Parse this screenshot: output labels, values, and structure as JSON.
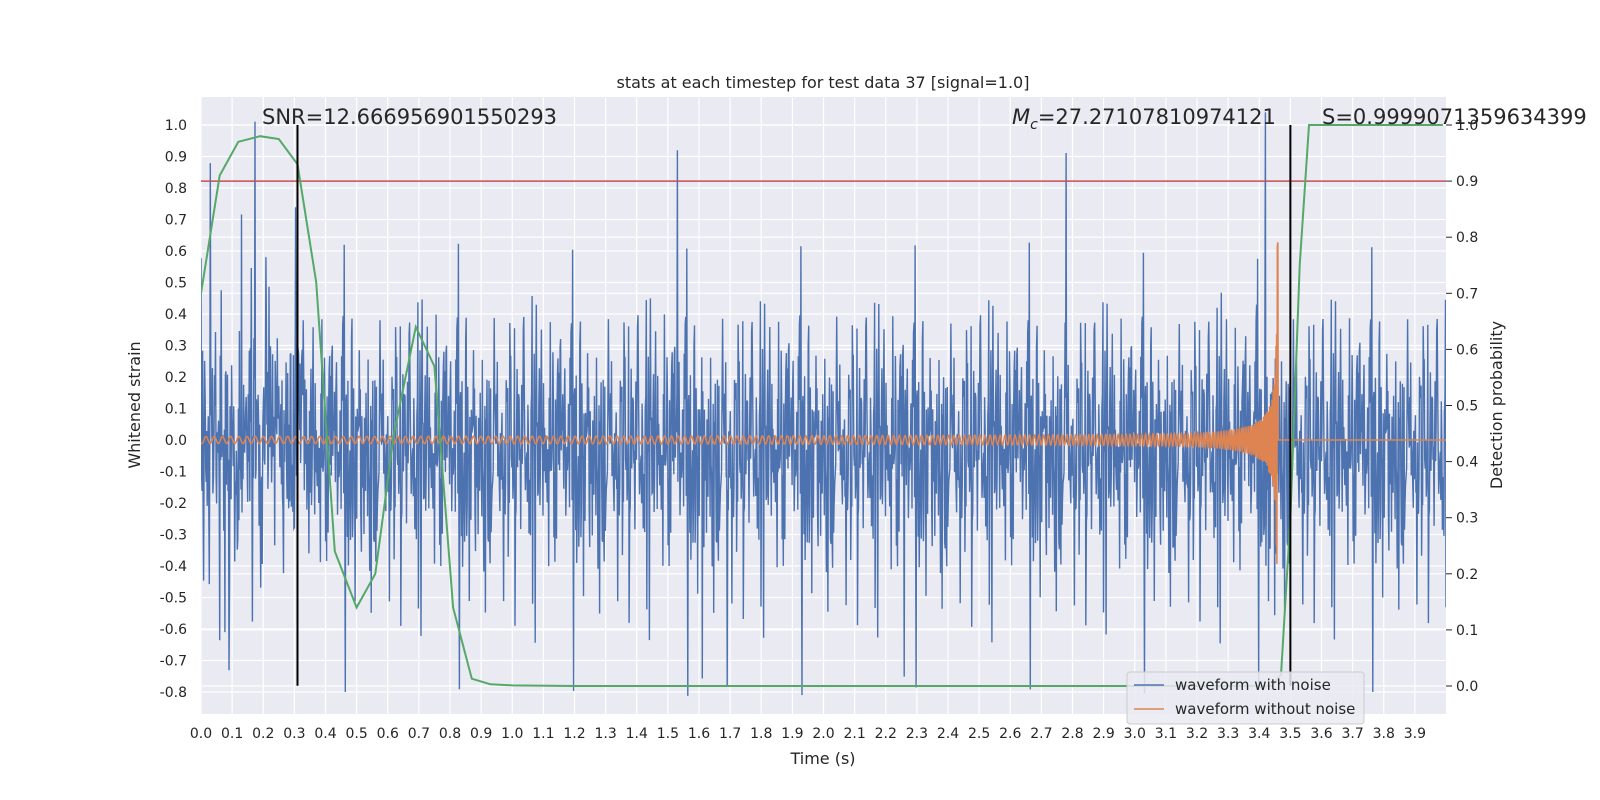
{
  "chart_data": {
    "type": "line",
    "title": "stats at each timestep for test data 37 [signal=1.0]",
    "xlabel": "Time (s)",
    "ylabel_left": "Whitened strain",
    "ylabel_right": "Detection probability",
    "xlim": [
      0.0,
      4.0
    ],
    "ylim_left": [
      -0.88,
      1.08
    ],
    "ylim_right": [
      -0.05,
      1.0
    ],
    "x_ticks": [
      "0.0",
      "0.1",
      "0.2",
      "0.3",
      "0.4",
      "0.5",
      "0.6",
      "0.7",
      "0.8",
      "0.9",
      "1.0",
      "1.1",
      "1.2",
      "1.3",
      "1.4",
      "1.5",
      "1.6",
      "1.7",
      "1.8",
      "1.9",
      "2.0",
      "2.1",
      "2.2",
      "2.3",
      "2.4",
      "2.5",
      "2.6",
      "2.7",
      "2.8",
      "2.9",
      "3.0",
      "3.1",
      "3.2",
      "3.3",
      "3.4",
      "3.5",
      "3.6",
      "3.7",
      "3.8",
      "3.9"
    ],
    "y_left_ticks": [
      "1.0",
      "0.9",
      "0.8",
      "0.7",
      "0.6",
      "0.5",
      "0.4",
      "0.3",
      "0.2",
      "0.1",
      "0.0",
      "-0.1",
      "-0.2",
      "-0.3",
      "-0.4",
      "-0.5",
      "-0.6",
      "-0.7",
      "-0.8"
    ],
    "y_right_ticks": [
      "1.0",
      "0.9",
      "0.8",
      "0.7",
      "0.6",
      "0.5",
      "0.4",
      "0.3",
      "0.2",
      "0.1",
      "0.0"
    ],
    "grid": true,
    "annotations": {
      "snr": "SNR=12.666956901550293",
      "mc_symbol": "M",
      "mc_sub": "c",
      "mc_value": "=27.27107810974121",
      "s_text": "S=0.9999071359634399"
    },
    "threshold": {
      "value": 0.9,
      "axis": "right",
      "color": "#c44e52"
    },
    "vlines": [
      0.31,
      3.5
    ],
    "series": [
      {
        "name": "waveform with noise",
        "color": "#4c72b0",
        "axis": "left",
        "kind": "noise",
        "amplitude": 0.27,
        "spikes": [
          [
            0.03,
            0.89
          ],
          [
            0.06,
            -0.63
          ],
          [
            0.13,
            0.72
          ],
          [
            1.53,
            0.91
          ],
          [
            1.61,
            -0.75
          ],
          [
            1.69,
            -0.77
          ],
          [
            2.26,
            -0.76
          ],
          [
            2.78,
            0.9
          ],
          [
            3.42,
            1.0
          ],
          [
            3.46,
            -0.73
          ]
        ]
      },
      {
        "name": "waveform without noise",
        "color": "#dd8452",
        "axis": "left",
        "kind": "chirp",
        "merger_time": 3.46,
        "peak_amplitude": 0.64
      },
      {
        "name": "detection probability",
        "color": "#55a868",
        "axis": "right",
        "kind": "line",
        "x": [
          0.0,
          0.06,
          0.12,
          0.19,
          0.25,
          0.31,
          0.37,
          0.43,
          0.5,
          0.56,
          0.62,
          0.69,
          0.75,
          0.81,
          0.87,
          0.93,
          1.0,
          1.2,
          1.5,
          2.0,
          2.5,
          3.0,
          3.3,
          3.4,
          3.44,
          3.47,
          3.5,
          3.53,
          3.56,
          3.6,
          3.9,
          3.99
        ],
        "y": [
          0.7,
          0.91,
          0.97,
          0.98,
          0.975,
          0.93,
          0.72,
          0.24,
          0.14,
          0.2,
          0.45,
          0.64,
          0.57,
          0.14,
          0.013,
          0.003,
          0.001,
          0.0,
          0.0,
          0.0,
          0.0,
          0.0,
          0.0,
          0.0,
          0.0,
          0.02,
          0.3,
          0.75,
          1.0,
          1.0,
          1.0,
          1.0
        ]
      }
    ],
    "legend": {
      "position": "lower-right",
      "entries": [
        "waveform with noise",
        "waveform without noise"
      ]
    }
  }
}
